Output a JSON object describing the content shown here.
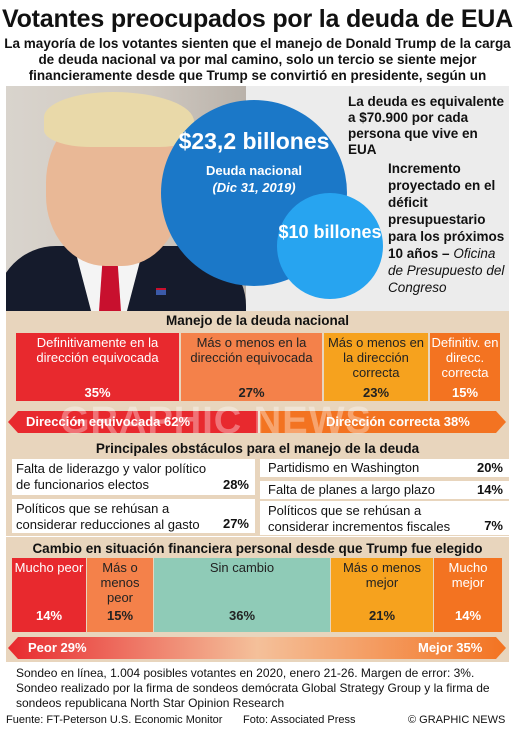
{
  "header": {
    "title": "Votantes preocupados por la deuda de EUA",
    "subtitle": "La mayoría de los votantes sienten que el manejo de Donald Trump de la carga de deuda nacional va por mal camino, solo un tercio se siente mejor financieramente desde que Trump se convirtió en presidente, según un sondeo de FT-Peterson"
  },
  "hero": {
    "debt_amount": "$23,2 billones",
    "debt_label": "Deuda nacional",
    "debt_date": "(Dic 31, 2019)",
    "per_person": "La deuda es equivalente a $70.900 por cada persona que vive en EUA",
    "deficit_amount": "$10 billones",
    "deficit_text": "Incremento proyectado en el déficit presupuestario para los próximos 10 años –",
    "deficit_source": "Oficina de Presupuesto del Congreso"
  },
  "handling": {
    "title": "Manejo de la deuda nacional",
    "cells": [
      {
        "label": "Definitivamente en la dirección equivocada",
        "pct": "35%",
        "color": "#e8292e"
      },
      {
        "label": "Más o menos en la dirección equivocada",
        "pct": "27%",
        "color": "#f4814a"
      },
      {
        "label": "Más o menos en la dirección correcta",
        "pct": "23%",
        "color": "#f6a21e"
      },
      {
        "label": "Definitiv. en direcc. correcta",
        "pct": "15%",
        "color": "#f37321"
      }
    ],
    "wrong_total": "Dirección equivocada 62%",
    "right_total": "Dirección correcta 38%"
  },
  "obstacles": {
    "title": "Principales obstáculos para el manejo de la deuda",
    "items": [
      {
        "label": "Falta de liderazgo y valor político de funcionarios electos",
        "pct": "28%"
      },
      {
        "label": "Políticos que se rehúsan a considerar reducciones al gasto",
        "pct": "27%"
      },
      {
        "label": "Partidismo en Washington",
        "pct": "20%"
      },
      {
        "label": "Falta de planes a largo plazo",
        "pct": "14%"
      },
      {
        "label": "Políticos que se rehúsan a considerar incrementos fiscales",
        "pct": "7%"
      }
    ]
  },
  "finances": {
    "title": "Cambio en situación financiera personal desde que Trump fue elegido",
    "cells": [
      {
        "label": "Mucho peor",
        "pct": "14%",
        "color": "#e8292e"
      },
      {
        "label": "Más o menos peor",
        "pct": "15%",
        "color": "#f4814a"
      },
      {
        "label": "Sin cambio",
        "pct": "36%",
        "color": "#8fcbb7"
      },
      {
        "label": "Más o menos mejor",
        "pct": "21%",
        "color": "#f6a21e"
      },
      {
        "label": "Mucho mejor",
        "pct": "14%",
        "color": "#f37321"
      }
    ],
    "worse_total": "Peor 29%",
    "better_total": "Mejor 35%"
  },
  "notes": {
    "line1": "Sondeo en línea, 1.004 posibles votantes en 2020, enero 21-26. Margen de error: 3%.",
    "line2": "Sondeo realizado por la firma de sondeos demócrata  Global Strategy Group y la firma de sondeos republicana North Star Opinion Research"
  },
  "footer": {
    "source": "Fuente: FT-Peterson U.S. Economic Monitor",
    "photo": "Foto: Associated Press",
    "credit": "© GRAPHIC NEWS"
  },
  "watermark": "GRAPHIC NEWS"
}
